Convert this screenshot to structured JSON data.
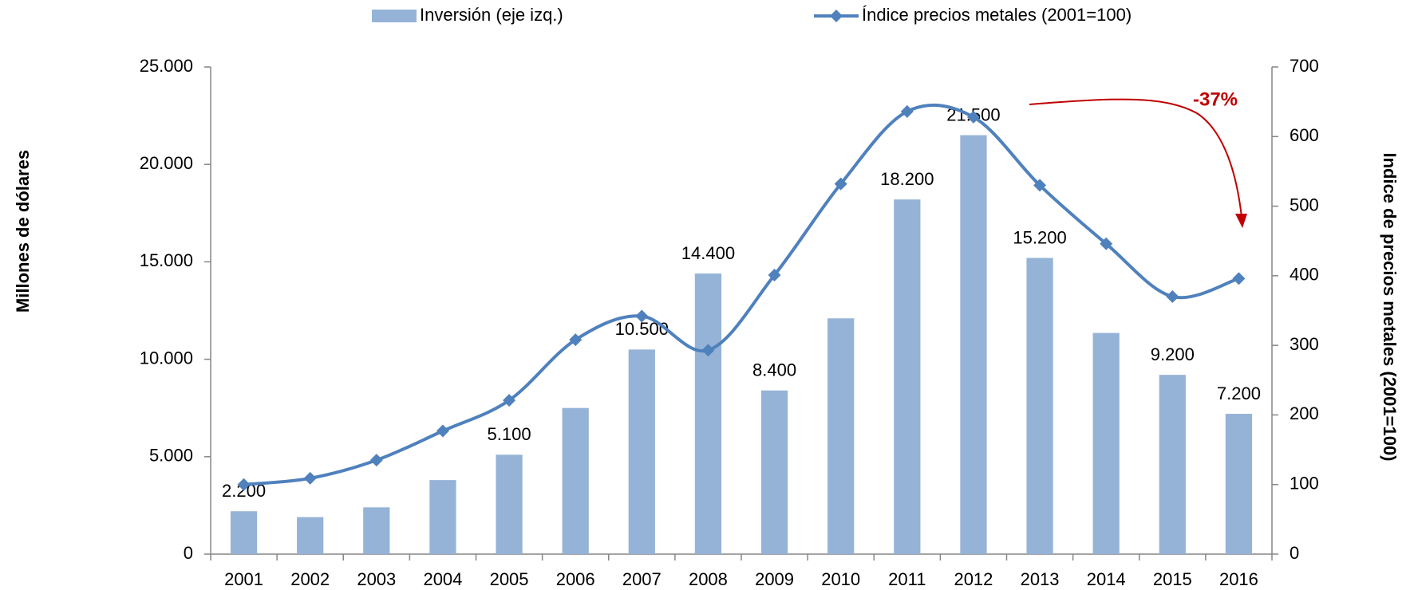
{
  "chart_data": {
    "type": "bar_line",
    "categories": [
      "2001",
      "2002",
      "2003",
      "2004",
      "2005",
      "2006",
      "2007",
      "2008",
      "2009",
      "2010",
      "2011",
      "2012",
      "2013",
      "2014",
      "2015",
      "2016"
    ],
    "series": [
      {
        "name": "Inversión (eje izq.)",
        "type": "bar",
        "color": "#95b3d7",
        "values": [
          2200,
          1900,
          2400,
          3800,
          5100,
          7500,
          10500,
          14400,
          8400,
          12100,
          18200,
          21500,
          15200,
          11350,
          9200,
          7200
        ],
        "value_labels": [
          "2.200",
          null,
          null,
          null,
          "5.100",
          null,
          "10.500",
          "14.400",
          "8.400",
          null,
          "18.200",
          "21.500",
          "15.200",
          null,
          "9.200",
          "7.200"
        ]
      },
      {
        "name": "Índice precios metales (2001=100)",
        "type": "line",
        "axis": "y2",
        "color": "#4f81bd",
        "values": [
          100,
          109,
          135,
          177,
          221,
          308,
          342,
          293,
          401,
          532,
          636,
          628,
          530,
          446,
          370,
          396
        ]
      }
    ],
    "ylabel": "Millones de dólares",
    "y2label": "Indice de precios metales (2001=100)",
    "annotation": "-37%",
    "ylim": [
      0,
      25000
    ],
    "yticks": [
      0,
      {
        "value": 5000,
        "label": "5.000"
      },
      {
        "value": 10000,
        "label": "10.000"
      },
      {
        "value": 15000,
        "label": "15.000"
      },
      {
        "value": 20000,
        "label": "20.000"
      },
      {
        "value": 25000,
        "label": "25.000"
      }
    ],
    "y2lim": [
      0,
      700
    ],
    "y2ticks": [
      0,
      100,
      200,
      300,
      400,
      500,
      600,
      700
    ],
    "grid": false,
    "legend": "top"
  }
}
